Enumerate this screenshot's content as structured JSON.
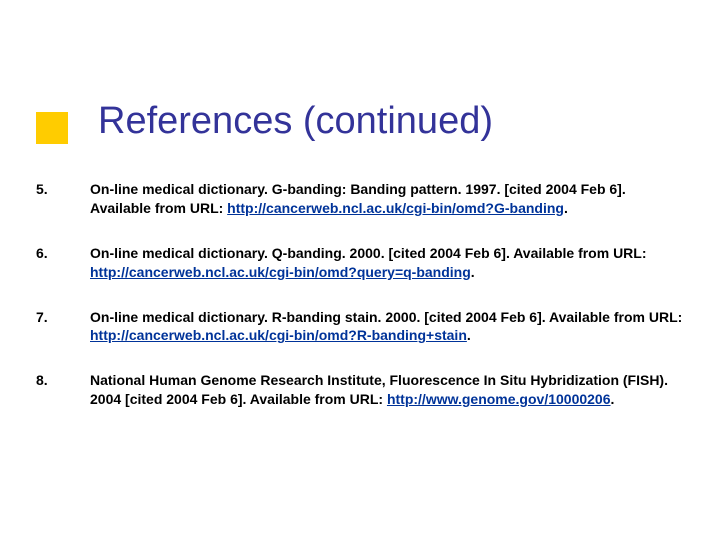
{
  "colors": {
    "accent": "#ffcc00",
    "title": "#333399",
    "link": "#003399",
    "text": "#000000",
    "background": "#ffffff"
  },
  "typography": {
    "title_fontsize": 38,
    "body_fontsize": 14,
    "font_family": "Verdana"
  },
  "title": "References (continued)",
  "references": [
    {
      "number": "5.",
      "text_before": "On-line medical dictionary. G-banding: Banding pattern. 1997. [cited  2004 Feb 6]. Available from URL: ",
      "link": "http://cancerweb.ncl.ac.uk/cgi-bin/omd?G-banding",
      "text_after": "."
    },
    {
      "number": "6.",
      "text_before": "On-line medical dictionary. Q-banding. 2000. [cited  2004 Feb 6]. Available from URL: ",
      "link": "http://cancerweb.ncl.ac.uk/cgi-bin/omd?query=q-banding",
      "text_after": "."
    },
    {
      "number": "7.",
      "text_before": "On-line medical dictionary. R-banding stain. 2000. [cited  2004 Feb 6]. Available from URL: ",
      "link": "http://cancerweb.ncl.ac.uk/cgi-bin/omd?R-banding+stain",
      "text_after": "."
    },
    {
      "number": "8.",
      "text_before": "National Human Genome Research Institute, Fluorescence In Situ Hybridization (FISH). 2004 [cited 2004 Feb 6]. Available from URL: ",
      "link": "http://www.genome.gov/10000206",
      "text_after": "."
    }
  ]
}
